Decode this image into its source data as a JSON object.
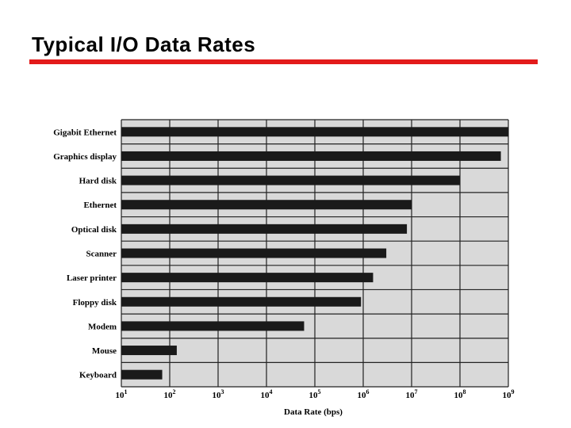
{
  "slide": {
    "title": "Typical I/O Data Rates",
    "accent_color": "#e31b1b"
  },
  "chart_data": {
    "type": "bar",
    "orientation": "horizontal",
    "categories": [
      "Gigabit Ethernet",
      "Graphics display",
      "Hard disk",
      "Ethernet",
      "Optical disk",
      "Scanner",
      "Laser printer",
      "Floppy disk",
      "Modem",
      "Mouse",
      "Keyboard"
    ],
    "values": [
      1000000000,
      700000000,
      100000000,
      10000000,
      8000000,
      3000000,
      1600000,
      900000,
      60000,
      140,
      70
    ],
    "x_scale": "log",
    "xlim": [
      10,
      1000000000
    ],
    "x_ticks": [
      {
        "value": 10,
        "base": "10",
        "exp": "1"
      },
      {
        "value": 100,
        "base": "10",
        "exp": "2"
      },
      {
        "value": 1000,
        "base": "10",
        "exp": "3"
      },
      {
        "value": 10000,
        "base": "10",
        "exp": "4"
      },
      {
        "value": 100000,
        "base": "10",
        "exp": "5"
      },
      {
        "value": 1000000,
        "base": "10",
        "exp": "6"
      },
      {
        "value": 10000000,
        "base": "10",
        "exp": "7"
      },
      {
        "value": 100000000,
        "base": "10",
        "exp": "8"
      },
      {
        "value": 1000000000,
        "base": "10",
        "exp": "9"
      }
    ],
    "xlabel": "Data Rate (bps)",
    "ylabel": "",
    "grid": true,
    "colors": {
      "bar": "#1a1a1a",
      "plot_bg": "#d9d9d9",
      "grid": "#222222"
    }
  }
}
